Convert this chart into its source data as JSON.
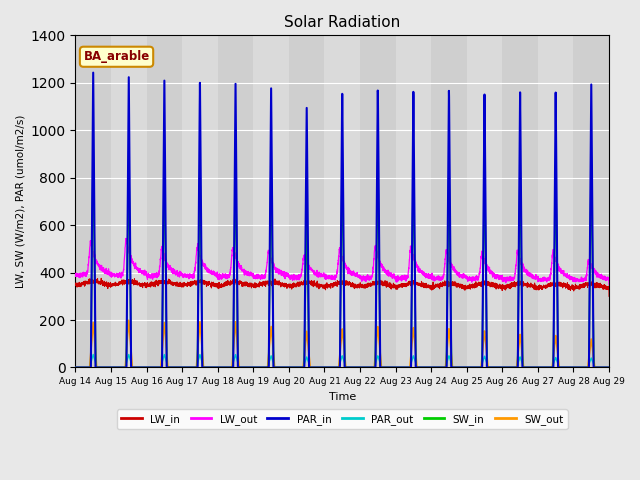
{
  "title": "Solar Radiation",
  "xlabel": "Time",
  "ylabel": "LW, SW (W/m2), PAR (umol/m2/s)",
  "annotation": "BA_arable",
  "ylim": [
    0,
    1400
  ],
  "n_days": 15,
  "tick_labels": [
    "Aug 14",
    "Aug 15",
    "Aug 16",
    "Aug 17",
    "Aug 18",
    "Aug 19",
    "Aug 20",
    "Aug 21",
    "Aug 22",
    "Aug 23",
    "Aug 24",
    "Aug 25",
    "Aug 26",
    "Aug 27",
    "Aug 28",
    "Aug 29"
  ],
  "PAR_in_peaks": [
    1245,
    1230,
    1220,
    1215,
    1215,
    1200,
    1120,
    1185,
    1195,
    1185,
    1185,
    1165,
    1170,
    1165,
    1195
  ],
  "SW_in_peaks": [
    920,
    915,
    910,
    910,
    905,
    890,
    700,
    870,
    885,
    870,
    870,
    855,
    860,
    855,
    890
  ],
  "SW_out_peaks": [
    190,
    200,
    190,
    195,
    195,
    175,
    155,
    165,
    175,
    170,
    165,
    155,
    140,
    135,
    120
  ],
  "PAR_out_peaks": [
    55,
    55,
    55,
    55,
    55,
    50,
    45,
    50,
    50,
    50,
    50,
    48,
    45,
    42,
    40
  ],
  "LW_out_spike": [
    530,
    545,
    500,
    510,
    505,
    490,
    475,
    500,
    510,
    510,
    495,
    485,
    490,
    490,
    455
  ],
  "colors": {
    "LW_in": "#cc0000",
    "LW_out": "#ff00ff",
    "PAR_in": "#0000cc",
    "PAR_out": "#00cccc",
    "SW_in": "#00cc00",
    "SW_out": "#ff9900"
  },
  "bg_color": "#e8e8e8",
  "plot_bg_color": "#d4d4d4"
}
